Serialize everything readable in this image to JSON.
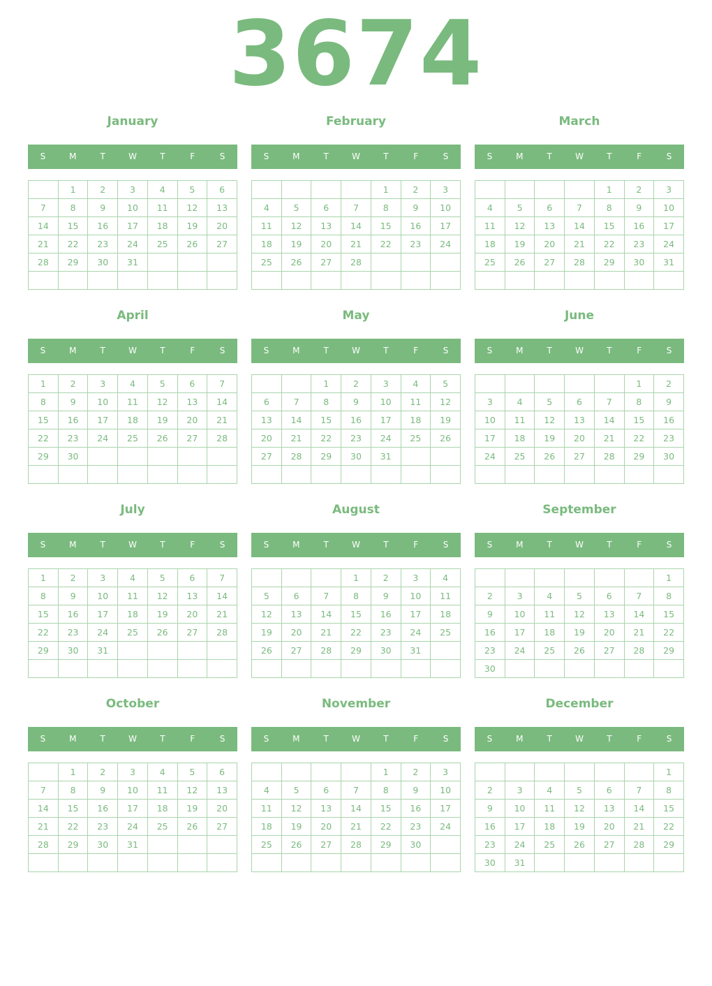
{
  "year": "3674",
  "accent": "#7aba7e",
  "weekdays": [
    "S",
    "M",
    "T",
    "W",
    "T",
    "F",
    "S"
  ],
  "months": [
    {
      "name": "January",
      "offset": 1,
      "days": 31
    },
    {
      "name": "February",
      "offset": 4,
      "days": 28
    },
    {
      "name": "March",
      "offset": 4,
      "days": 31
    },
    {
      "name": "April",
      "offset": 0,
      "days": 30
    },
    {
      "name": "May",
      "offset": 2,
      "days": 31
    },
    {
      "name": "June",
      "offset": 5,
      "days": 30
    },
    {
      "name": "July",
      "offset": 0,
      "days": 31
    },
    {
      "name": "August",
      "offset": 3,
      "days": 31
    },
    {
      "name": "September",
      "offset": 6,
      "days": 30
    },
    {
      "name": "October",
      "offset": 1,
      "days": 31
    },
    {
      "name": "November",
      "offset": 4,
      "days": 30
    },
    {
      "name": "December",
      "offset": 6,
      "days": 31
    }
  ]
}
